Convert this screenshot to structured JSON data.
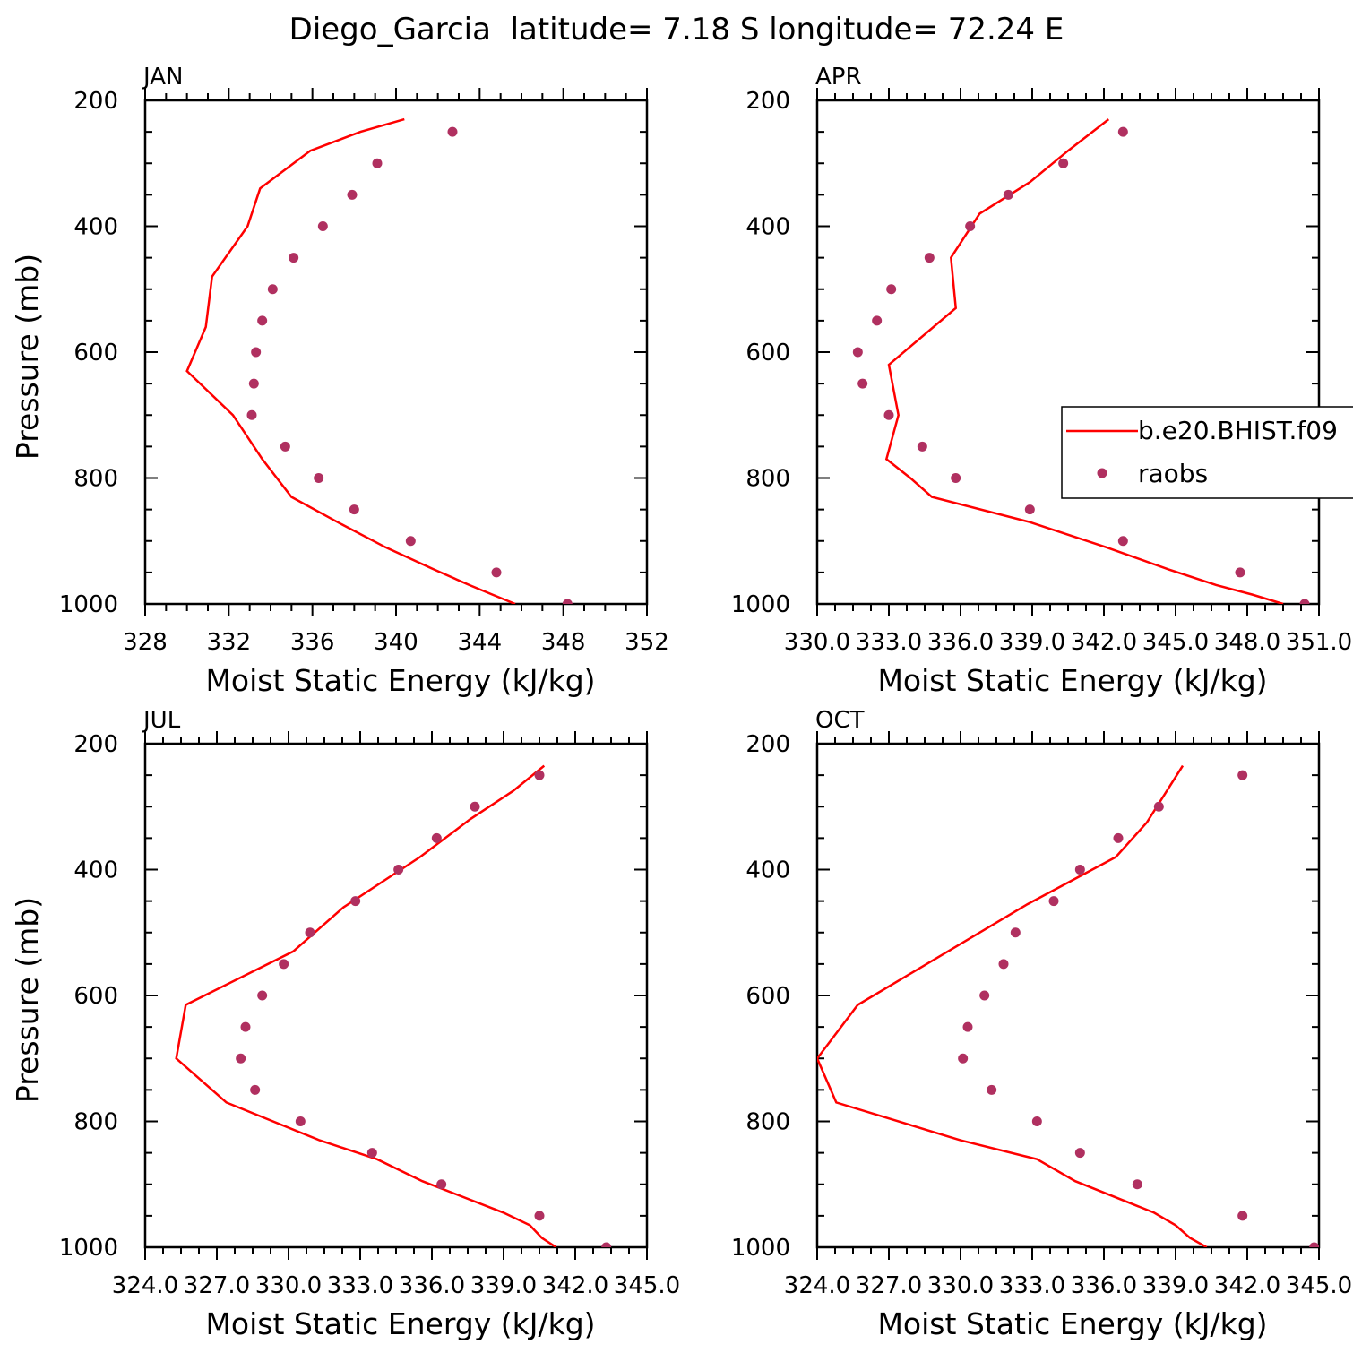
{
  "figure": {
    "title": "Diego_Garcia  latitude= 7.18 S longitude= 72.24 E"
  },
  "colors": {
    "model_line": "#ff0000",
    "obs_marker": "#b03060",
    "axes": "#000000"
  },
  "chart_data": [
    {
      "type": "line",
      "panel_label": "JAN",
      "xlabel": "Moist Static Energy (kJ/kg)",
      "ylabel": "Pressure (mb)",
      "xlim": [
        328,
        352
      ],
      "ylim": [
        200,
        1000
      ],
      "y_inverted": true,
      "xticks": [
        "328",
        "332",
        "336",
        "340",
        "344",
        "348",
        "352"
      ],
      "yticks": [
        "200",
        "400",
        "600",
        "800",
        "1000"
      ],
      "series": [
        {
          "kind": "line",
          "x": [
            345.7,
            344.6,
            343.5,
            341.8,
            339.5,
            337.2,
            335.0,
            333.6,
            332.2,
            330.0,
            330.9,
            331.2,
            332.9,
            333.5,
            335.9,
            338.3,
            340.4
          ],
          "y": [
            1000,
            985,
            970,
            945,
            910,
            870,
            830,
            770,
            700,
            630,
            560,
            480,
            400,
            340,
            280,
            250,
            230
          ]
        },
        {
          "kind": "scatter",
          "x": [
            348.2,
            344.8,
            340.7,
            338.0,
            336.3,
            334.7,
            333.1,
            333.2,
            333.3,
            333.6,
            334.1,
            335.1,
            336.5,
            337.9,
            339.1,
            342.7
          ],
          "y": [
            1000,
            950,
            900,
            850,
            800,
            750,
            700,
            650,
            600,
            550,
            500,
            450,
            400,
            350,
            300,
            250
          ]
        }
      ]
    },
    {
      "type": "line",
      "panel_label": "APR",
      "xlabel": "Moist Static Energy (kJ/kg)",
      "ylabel": "",
      "xlim": [
        330.0,
        351.0
      ],
      "ylim": [
        200,
        1000
      ],
      "y_inverted": true,
      "xticks": [
        "330.0",
        "333.0",
        "336.0",
        "339.0",
        "342.0",
        "345.0",
        "348.0",
        "351.0"
      ],
      "yticks": [
        "200",
        "400",
        "600",
        "800",
        "1000"
      ],
      "series": [
        {
          "name": "b.e20.BHIST.f09",
          "kind": "line",
          "x": [
            349.5,
            348.2,
            346.7,
            344.7,
            342.1,
            338.9,
            334.8,
            333.9,
            332.9,
            333.4,
            333.0,
            335.8,
            335.6,
            336.8,
            338.9,
            340.5,
            342.2
          ],
          "y": [
            1000,
            985,
            970,
            945,
            910,
            870,
            830,
            800,
            770,
            700,
            620,
            530,
            450,
            380,
            330,
            280,
            230
          ]
        },
        {
          "name": "raobs",
          "kind": "scatter",
          "x": [
            350.4,
            347.7,
            342.8,
            338.9,
            335.8,
            334.4,
            333.0,
            331.9,
            331.7,
            332.5,
            333.1,
            334.7,
            336.4,
            338.0,
            340.3,
            342.8
          ],
          "y": [
            1000,
            950,
            900,
            850,
            800,
            750,
            700,
            650,
            600,
            550,
            500,
            450,
            400,
            350,
            300,
            250
          ]
        }
      ],
      "legend": {
        "placement": "right",
        "entries": [
          "b.e20.BHIST.f09",
          "raobs"
        ]
      }
    },
    {
      "type": "line",
      "panel_label": "JUL",
      "xlabel": "Moist Static Energy (kJ/kg)",
      "ylabel": "Pressure (mb)",
      "xlim": [
        324.0,
        345.0
      ],
      "ylim": [
        200,
        1000
      ],
      "y_inverted": true,
      "xticks": [
        "324.0",
        "327.0",
        "330.0",
        "333.0",
        "336.0",
        "339.0",
        "342.0",
        "345.0"
      ],
      "yticks": [
        "200",
        "400",
        "600",
        "800",
        "1000"
      ],
      "series": [
        {
          "kind": "line",
          "x": [
            341.2,
            340.6,
            340.1,
            339.0,
            335.6,
            333.7,
            331.3,
            327.4,
            325.3,
            325.7,
            330.2,
            332.3,
            335.5,
            337.6,
            339.4,
            340.7
          ],
          "y": [
            1000,
            985,
            965,
            945,
            895,
            860,
            830,
            770,
            700,
            615,
            530,
            460,
            380,
            320,
            275,
            235
          ]
        },
        {
          "kind": "scatter",
          "x": [
            343.3,
            340.5,
            336.4,
            333.5,
            330.5,
            328.6,
            328.0,
            328.2,
            328.9,
            329.8,
            330.9,
            332.8,
            334.6,
            336.2,
            337.8,
            340.5
          ],
          "y": [
            1000,
            950,
            900,
            850,
            800,
            750,
            700,
            650,
            600,
            550,
            500,
            450,
            400,
            350,
            300,
            250
          ]
        }
      ]
    },
    {
      "type": "line",
      "panel_label": "OCT",
      "xlabel": "Moist Static Energy (kJ/kg)",
      "ylabel": "",
      "xlim": [
        324.0,
        345.0
      ],
      "ylim": [
        200,
        1000
      ],
      "y_inverted": true,
      "xticks": [
        "324.0",
        "327.0",
        "330.0",
        "333.0",
        "336.0",
        "339.0",
        "342.0",
        "345.0"
      ],
      "yticks": [
        "200",
        "400",
        "600",
        "800",
        "1000"
      ],
      "series": [
        {
          "kind": "line",
          "x": [
            340.3,
            339.6,
            339.0,
            338.1,
            334.8,
            333.2,
            330.0,
            324.8,
            324.0,
            325.7,
            332.8,
            336.5,
            337.8,
            339.3
          ],
          "y": [
            1000,
            985,
            965,
            945,
            895,
            860,
            830,
            770,
            700,
            615,
            455,
            380,
            325,
            235
          ]
        },
        {
          "kind": "scatter",
          "x": [
            344.8,
            341.8,
            337.4,
            335.0,
            333.2,
            331.3,
            330.1,
            330.3,
            331.0,
            331.8,
            332.3,
            333.9,
            335.0,
            336.6,
            338.3,
            341.8
          ],
          "y": [
            1000,
            950,
            900,
            850,
            800,
            750,
            700,
            650,
            600,
            550,
            500,
            450,
            400,
            350,
            300,
            250
          ]
        }
      ]
    }
  ]
}
